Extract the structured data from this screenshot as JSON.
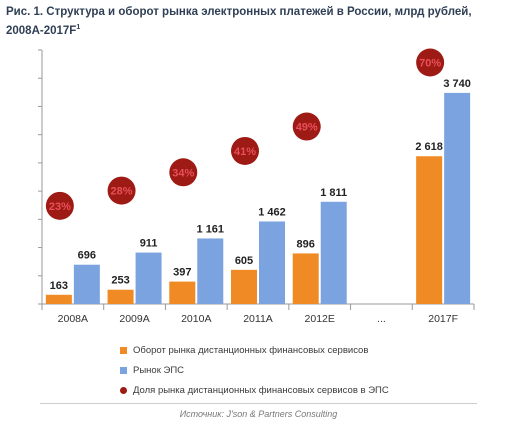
{
  "title_main": "Рис. 1. Структура  и оборот рынка электронных платежей в России, млрд рублей, 2008А-2017F",
  "title_sup": "1",
  "source": "Источник: J'son & Partners Consulting",
  "colors": {
    "orange": "#f08a24",
    "blue": "#7ba3e0",
    "circle": "#9e1a14",
    "percent_text": "#e8505a",
    "axis": "#9a9a9a",
    "title": "#2f3f55"
  },
  "chart_data": {
    "type": "bar",
    "categories": [
      "2008A",
      "2009A",
      "2010A",
      "2011A",
      "2012E",
      "...",
      "2017F"
    ],
    "series": [
      {
        "name": "Оборот рынка дистанционных финансовых сервисов",
        "values": [
          163,
          253,
          397,
          605,
          896,
          null,
          2618
        ],
        "labels": [
          "163",
          "253",
          "397",
          "605",
          "896",
          "",
          "2 618"
        ]
      },
      {
        "name": "Рынок ЭПС",
        "values": [
          696,
          911,
          1161,
          1462,
          1811,
          null,
          3740
        ],
        "labels": [
          "696",
          "911",
          "1 161",
          "1 462",
          "1 811",
          "",
          "3 740"
        ]
      }
    ],
    "share": {
      "name": "Доля рынка дистанционных финансовых сервисов в ЭПС",
      "values": [
        23,
        28,
        34,
        41,
        49,
        null,
        70
      ],
      "labels": [
        "23%",
        "28%",
        "34%",
        "41%",
        "49%",
        "",
        "70%"
      ]
    },
    "ylim": [
      0,
      4500
    ],
    "grid": false,
    "legend_placement": "bottom"
  }
}
